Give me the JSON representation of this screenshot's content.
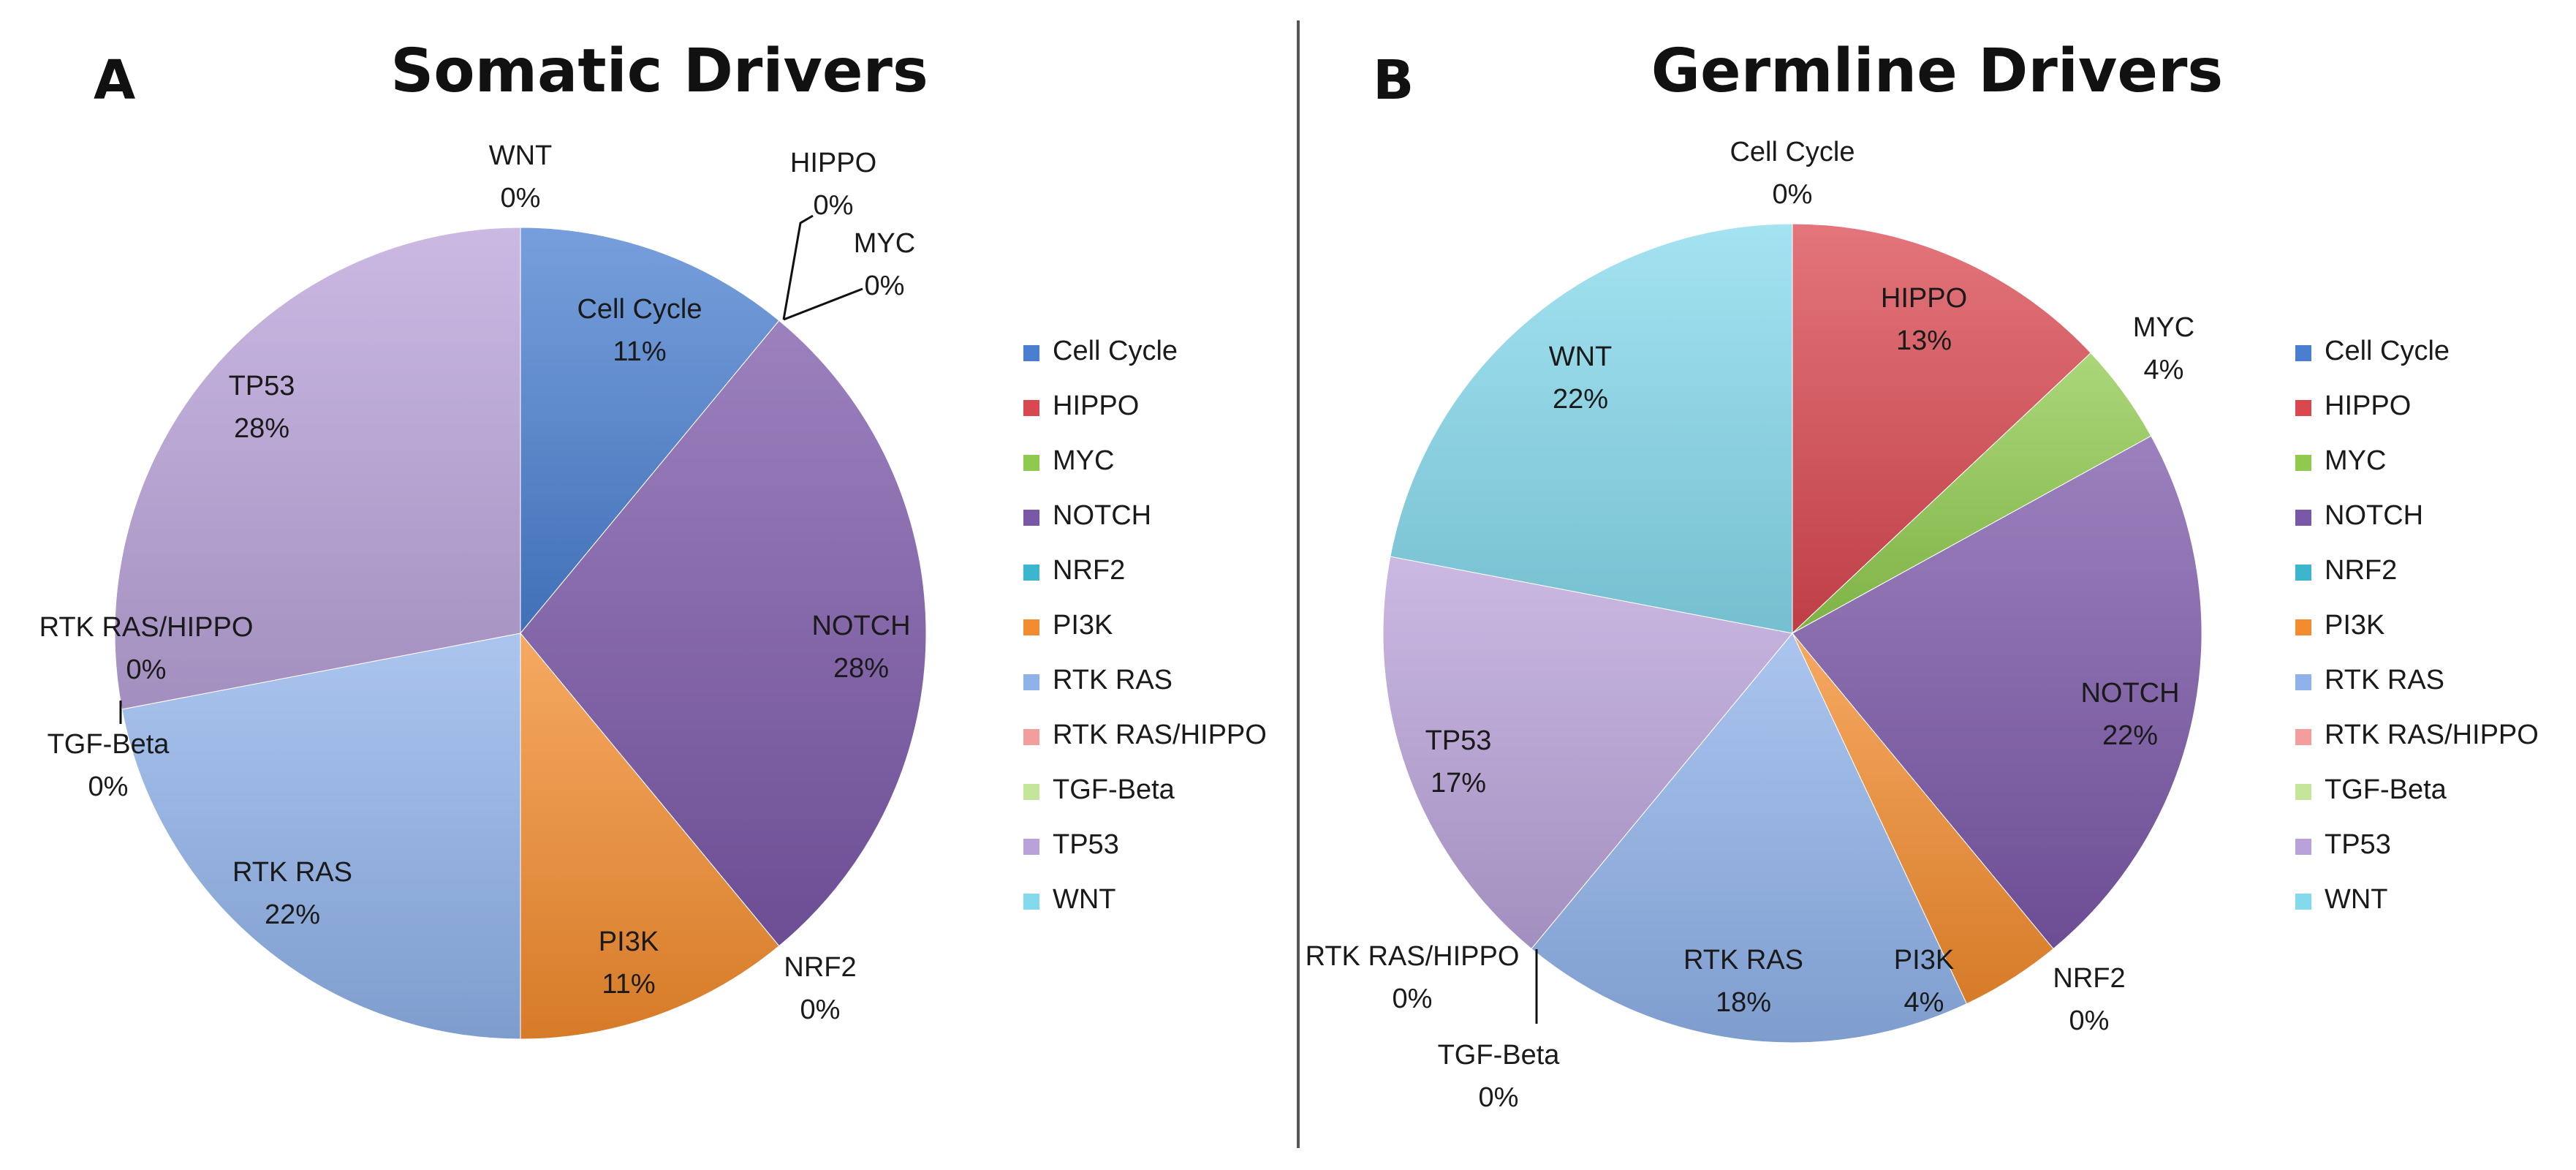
{
  "colors": {
    "Cell Cycle": "#4a7fd0",
    "HIPPO": "#d9474f",
    "MYC": "#8fca4e",
    "NOTCH": "#7b57a8",
    "NRF2": "#3cb6cf",
    "PI3K": "#f38c2e",
    "RTK RAS": "#8fb2ea",
    "RTK RAS/HIPPO": "#f19e9c",
    "TGF-Beta": "#c5e69a",
    "TP53": "#b9a2d9",
    "WNT": "#85d9ec"
  },
  "chart_data": [
    {
      "type": "pie",
      "panel": "A",
      "title": "Somatic Drivers",
      "legend_position": "right",
      "slices": [
        {
          "label": "Cell Cycle",
          "value": 11,
          "display": "11%"
        },
        {
          "label": "HIPPO",
          "value": 0,
          "display": "0%"
        },
        {
          "label": "MYC",
          "value": 0,
          "display": "0%"
        },
        {
          "label": "NOTCH",
          "value": 28,
          "display": "28%"
        },
        {
          "label": "NRF2",
          "value": 0,
          "display": "0%"
        },
        {
          "label": "PI3K",
          "value": 11,
          "display": "11%"
        },
        {
          "label": "RTK RAS",
          "value": 22,
          "display": "22%"
        },
        {
          "label": "TGF-Beta",
          "value": 0,
          "display": "0%"
        },
        {
          "label": "RTK RAS/HIPPO",
          "value": 0,
          "display": "0%"
        },
        {
          "label": "TP53",
          "value": 28,
          "display": "28%"
        },
        {
          "label": "WNT",
          "value": 0,
          "display": "0%"
        }
      ],
      "legend": [
        "Cell Cycle",
        "HIPPO",
        "MYC",
        "NOTCH",
        "NRF2",
        "PI3K",
        "RTK RAS",
        "RTK RAS/HIPPO",
        "TGF-Beta",
        "TP53",
        "WNT"
      ]
    },
    {
      "type": "pie",
      "panel": "B",
      "title": "Germline Drivers",
      "legend_position": "right",
      "slices": [
        {
          "label": "Cell Cycle",
          "value": 0,
          "display": "0%"
        },
        {
          "label": "HIPPO",
          "value": 13,
          "display": "13%"
        },
        {
          "label": "MYC",
          "value": 4,
          "display": "4%"
        },
        {
          "label": "NOTCH",
          "value": 22,
          "display": "22%"
        },
        {
          "label": "NRF2",
          "value": 0,
          "display": "0%"
        },
        {
          "label": "PI3K",
          "value": 4,
          "display": "4%"
        },
        {
          "label": "RTK RAS",
          "value": 18,
          "display": "18%"
        },
        {
          "label": "TGF-Beta",
          "value": 0,
          "display": "0%"
        },
        {
          "label": "RTK RAS/HIPPO",
          "value": 0,
          "display": "0%"
        },
        {
          "label": "TP53",
          "value": 17,
          "display": "17%"
        },
        {
          "label": "WNT",
          "value": 22,
          "display": "22%"
        }
      ],
      "legend": [
        "Cell Cycle",
        "HIPPO",
        "MYC",
        "NOTCH",
        "NRF2",
        "PI3K",
        "RTK RAS",
        "RTK RAS/HIPPO",
        "TGF-Beta",
        "TP53",
        "WNT"
      ]
    }
  ]
}
